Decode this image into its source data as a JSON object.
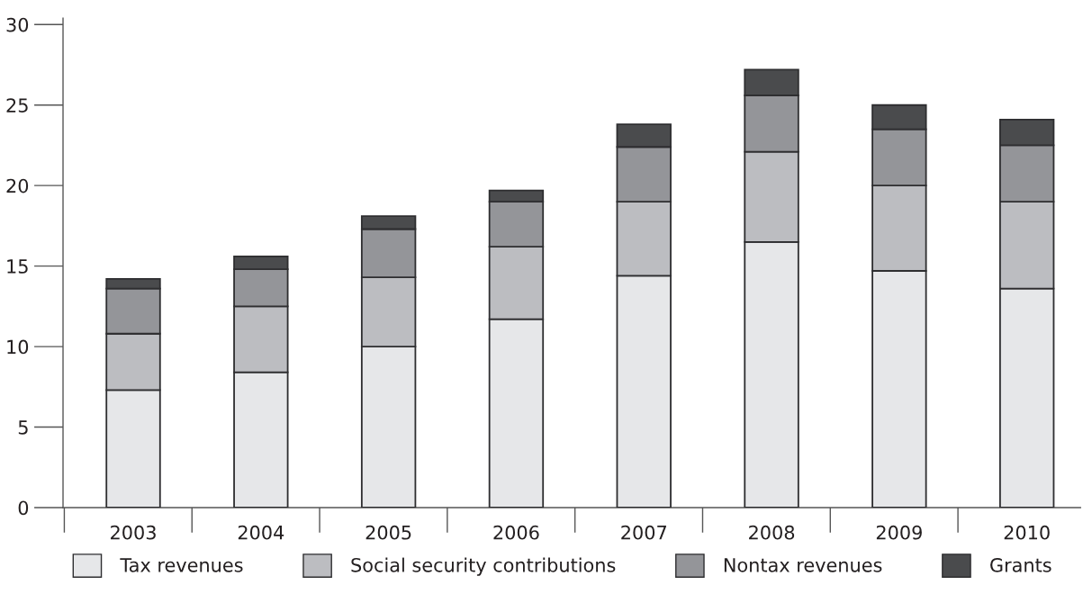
{
  "chart_data": {
    "type": "bar",
    "stacked": true,
    "categories": [
      "2003",
      "2004",
      "2005",
      "2006",
      "2007",
      "2008",
      "2009",
      "2010"
    ],
    "series": [
      {
        "name": "Tax revenues",
        "color": "#e6e7e9",
        "values": [
          7.3,
          8.4,
          10.0,
          11.7,
          14.4,
          16.5,
          14.7,
          13.6
        ]
      },
      {
        "name": "Social security contributions",
        "color": "#bcbdc1",
        "values": [
          3.5,
          4.1,
          4.3,
          4.5,
          4.6,
          5.6,
          5.3,
          5.4
        ]
      },
      {
        "name": "Nontax revenues",
        "color": "#949599",
        "values": [
          2.8,
          2.3,
          3.0,
          2.8,
          3.4,
          3.5,
          3.5,
          3.5
        ]
      },
      {
        "name": "Grants",
        "color": "#4a4b4d",
        "values": [
          0.6,
          0.8,
          0.8,
          0.7,
          1.4,
          1.6,
          1.5,
          1.6
        ]
      }
    ],
    "ylim": [
      0,
      30.4
    ],
    "yticks": [
      0,
      5,
      10,
      15,
      20,
      25,
      30
    ],
    "grid": false,
    "legend": "bottom"
  }
}
